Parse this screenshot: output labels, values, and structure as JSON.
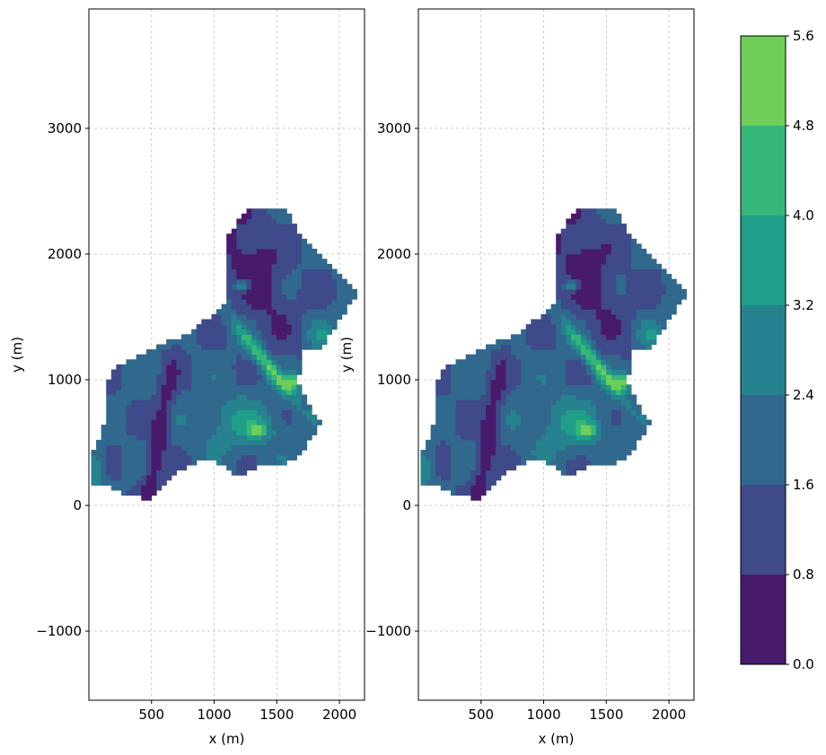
{
  "chart_data": [
    {
      "type": "contourf",
      "xlabel": "x (m)",
      "ylabel": "y (m)",
      "xlim": [
        0,
        2200
      ],
      "ylim": [
        -1550,
        3950
      ],
      "xticks": [
        500,
        1000,
        1500,
        2000
      ],
      "xtick_labels": [
        "500",
        "1000",
        "1500",
        "2000"
      ],
      "yticks": [
        -1000,
        0,
        1000,
        2000,
        3000
      ],
      "ytick_labels": [
        "−1000",
        "0",
        "1000",
        "2000",
        "3000"
      ],
      "grid": true
    },
    {
      "type": "contourf",
      "xlabel": "x (m)",
      "ylabel": "y (m)",
      "xlim": [
        0,
        2200
      ],
      "ylim": [
        -1550,
        3950
      ],
      "xticks": [
        500,
        1000,
        1500,
        2000
      ],
      "xtick_labels": [
        "500",
        "1000",
        "1500",
        "2000"
      ],
      "yticks": [
        -1000,
        0,
        1000,
        2000,
        3000
      ],
      "ytick_labels": [
        "−1000",
        "0",
        "1000",
        "2000",
        "3000"
      ],
      "grid": true
    }
  ],
  "colorbar": {
    "levels": [
      0.0,
      0.8,
      1.6,
      2.4,
      3.2,
      4.0,
      4.8,
      5.6
    ],
    "level_labels": [
      "0.0",
      "0.8",
      "1.6",
      "2.4",
      "3.2",
      "4.0",
      "4.8",
      "5.6"
    ],
    "colors": [
      "#481a6c",
      "#3e4a89",
      "#31688e",
      "#26828e",
      "#1f9e89",
      "#35b779",
      "#6ece58",
      "#d2e21b"
    ]
  }
}
